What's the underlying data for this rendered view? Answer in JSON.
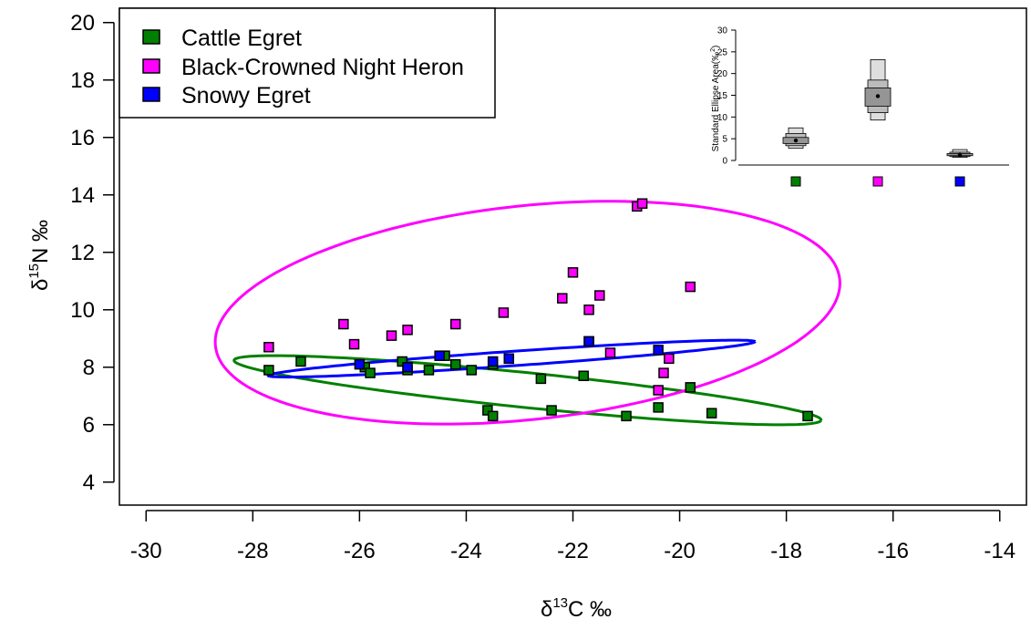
{
  "chart_data": {
    "type": "scatter",
    "xlabel": {
      "prefix": "δ",
      "sup": "13",
      "main": "C ‰"
    },
    "ylabel": {
      "prefix": "δ",
      "sup": "15",
      "main": "N ‰"
    },
    "xlim": [
      -30.5,
      -13.5
    ],
    "ylim": [
      3.2,
      20.5
    ],
    "xticks": [
      -30,
      -28,
      -26,
      -24,
      -22,
      -20,
      -18,
      -16,
      -14
    ],
    "yticks": [
      4,
      6,
      8,
      10,
      12,
      14,
      16,
      18,
      20
    ],
    "grid": false,
    "legend_position": "top-left",
    "series": [
      {
        "name": "Cattle Egret",
        "color": "#008000",
        "points": [
          [
            -27.7,
            7.9
          ],
          [
            -27.1,
            8.2
          ],
          [
            -25.9,
            8.0
          ],
          [
            -25.8,
            7.8
          ],
          [
            -25.2,
            8.2
          ],
          [
            -25.1,
            7.9
          ],
          [
            -24.7,
            7.9
          ],
          [
            -24.4,
            8.4
          ],
          [
            -24.2,
            8.1
          ],
          [
            -23.9,
            7.9
          ],
          [
            -23.6,
            6.5
          ],
          [
            -23.5,
            6.3
          ],
          [
            -23.5,
            8.1
          ],
          [
            -23.2,
            8.3
          ],
          [
            -22.6,
            7.6
          ],
          [
            -22.4,
            6.5
          ],
          [
            -21.8,
            7.7
          ],
          [
            -21.7,
            8.9
          ],
          [
            -21.0,
            6.3
          ],
          [
            -20.4,
            6.6
          ],
          [
            -19.8,
            7.3
          ],
          [
            -19.4,
            6.4
          ],
          [
            -17.6,
            6.3
          ]
        ],
        "ellipse": {
          "cx": -22.85,
          "cy": 7.2,
          "rx": 5.6,
          "ry": 0.6,
          "angle_deg": -10.8
        }
      },
      {
        "name": "Black-Crowned Night Heron",
        "color": "#ff00ff",
        "points": [
          [
            -27.7,
            8.7
          ],
          [
            -26.3,
            9.5
          ],
          [
            -26.1,
            8.8
          ],
          [
            -25.4,
            9.1
          ],
          [
            -25.1,
            9.3
          ],
          [
            -24.2,
            9.5
          ],
          [
            -23.3,
            9.9
          ],
          [
            -22.2,
            10.4
          ],
          [
            -22.0,
            11.3
          ],
          [
            -21.7,
            10.0
          ],
          [
            -21.5,
            10.5
          ],
          [
            -21.3,
            8.5
          ],
          [
            -20.8,
            13.6
          ],
          [
            -20.7,
            13.7
          ],
          [
            -20.4,
            7.2
          ],
          [
            -20.3,
            7.8
          ],
          [
            -20.2,
            8.3
          ],
          [
            -19.8,
            10.8
          ]
        ],
        "ellipse": {
          "cx": -22.85,
          "cy": 9.9,
          "rx": 6.0,
          "ry": 3.65,
          "angle_deg": 16
        }
      },
      {
        "name": "Snowy Egret",
        "color": "#0000ff",
        "points": [
          [
            -26.0,
            8.1
          ],
          [
            -25.1,
            8.0
          ],
          [
            -24.5,
            8.4
          ],
          [
            -23.5,
            8.2
          ],
          [
            -23.2,
            8.3
          ],
          [
            -21.7,
            8.9
          ],
          [
            -20.4,
            8.6
          ]
        ],
        "ellipse": {
          "cx": -23.15,
          "cy": 8.3,
          "rx": 4.6,
          "ry": 0.25,
          "angle_deg": 7.4
        }
      }
    ]
  },
  "inset_chart": {
    "type": "box",
    "ylabel": "Standard Ellipse Area(‰",
    "ylabel_sup": "2",
    "ylabel_close": ")",
    "yticks": [
      0,
      5,
      10,
      15,
      20,
      25,
      30
    ],
    "ylim": [
      -1,
      31.5
    ],
    "groups": [
      {
        "color": "#008000",
        "mode": 4.6,
        "q95": [
          2.8,
          7.5
        ],
        "q75": [
          3.4,
          6.2
        ],
        "q50": [
          3.9,
          5.3
        ]
      },
      {
        "color": "#ff00ff",
        "mode": 14.8,
        "q95": [
          9.3,
          23.2
        ],
        "q75": [
          11.0,
          18.5
        ],
        "q50": [
          12.5,
          16.7
        ]
      },
      {
        "color": "#0000ff",
        "mode": 1.3,
        "q95": [
          0.7,
          2.5
        ],
        "q75": [
          0.9,
          1.9
        ],
        "q50": [
          1.1,
          1.6
        ]
      }
    ]
  }
}
